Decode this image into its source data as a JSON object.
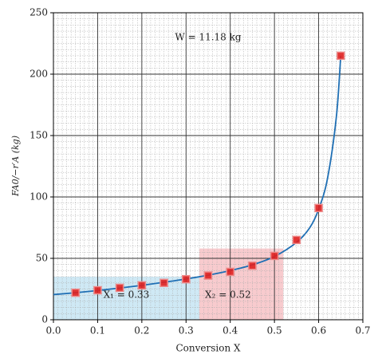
{
  "chart_data": {
    "type": "scatter",
    "xlabel": "Conversion X",
    "ylabel": "FA0/−r′A (kg)",
    "xlim": [
      0,
      0.7
    ],
    "ylim": [
      0,
      250
    ],
    "xticks": [
      {
        "value": 0,
        "label": "0.0"
      },
      0.1,
      0.2,
      0.3,
      0.4,
      0.5,
      0.6,
      0.7
    ],
    "yticks": [
      0,
      50,
      100,
      150,
      200,
      250
    ],
    "grid": true,
    "minor_grid": {
      "x": 0.01,
      "y": 5
    },
    "regions": [
      {
        "x0": 0,
        "x1": 0.33,
        "y1": 35,
        "color": "#bfe2f2"
      },
      {
        "x0": 0.33,
        "x1": 0.52,
        "y1": 58,
        "color": "#f5b9be"
      }
    ],
    "curve": {
      "color": "#1f6fb4",
      "x": [
        0,
        0.05,
        0.1,
        0.15,
        0.2,
        0.25,
        0.3,
        0.35,
        0.4,
        0.45,
        0.5,
        0.55,
        0.58,
        0.6,
        0.62,
        0.64,
        0.65
      ],
      "values": [
        20.5,
        22,
        23.8,
        25.8,
        28,
        30.5,
        33.2,
        36.3,
        40,
        44.7,
        51.5,
        63,
        75,
        90,
        115,
        165,
        215
      ]
    },
    "points": {
      "color": "#e0201f",
      "x": [
        0.05,
        0.1,
        0.15,
        0.2,
        0.25,
        0.3,
        0.35,
        0.4,
        0.45,
        0.5,
        0.55,
        0.6,
        0.65
      ],
      "values": [
        22,
        24,
        26,
        28,
        30,
        33,
        36,
        39,
        44,
        52,
        65,
        91,
        215
      ]
    },
    "annotations": [
      "W = 11.18 kg",
      "X₁ = 0.33",
      "X₂ = 0.52"
    ]
  }
}
